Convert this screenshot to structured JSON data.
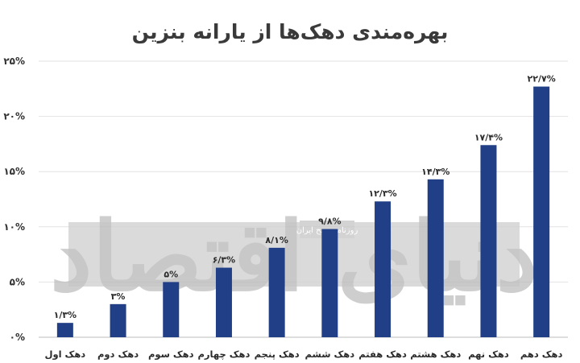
{
  "chart_data": {
    "type": "bar",
    "title": "بهره‌مندی دهک‌ها از یارانه بنزین",
    "categories": [
      "دهک اول",
      "دهک دوم",
      "دهک سوم",
      "دهک چهارم",
      "دهک پنجم",
      "دهک ششم",
      "دهک هفتم",
      "دهک هشتم",
      "دهک نهم",
      "دهک دهم"
    ],
    "values": [
      1.3,
      3,
      5,
      6.3,
      8.1,
      9.8,
      12.3,
      14.3,
      17.4,
      22.7
    ],
    "data_labels": [
      "۱/۳%",
      "۳%",
      "۵%",
      "۶/۳%",
      "۸/۱%",
      "۹/۸%",
      "۱۲/۳%",
      "۱۴/۳%",
      "۱۷/۴%",
      "۲۲/۷%"
    ],
    "y_ticks": [
      0,
      5,
      10,
      15,
      20,
      25
    ],
    "y_tick_labels": [
      "۰%",
      "۵%",
      "۱۰%",
      "۱۵%",
      "۲۰%",
      "۲۵%"
    ],
    "ylim": [
      0,
      25
    ],
    "xlabel": "",
    "ylabel": "",
    "grid": true,
    "bar_color": "#213f86"
  },
  "watermark": {
    "logo_text": "دنیای اقتصاد",
    "sub_text": "روزنامه صبح ایران"
  }
}
